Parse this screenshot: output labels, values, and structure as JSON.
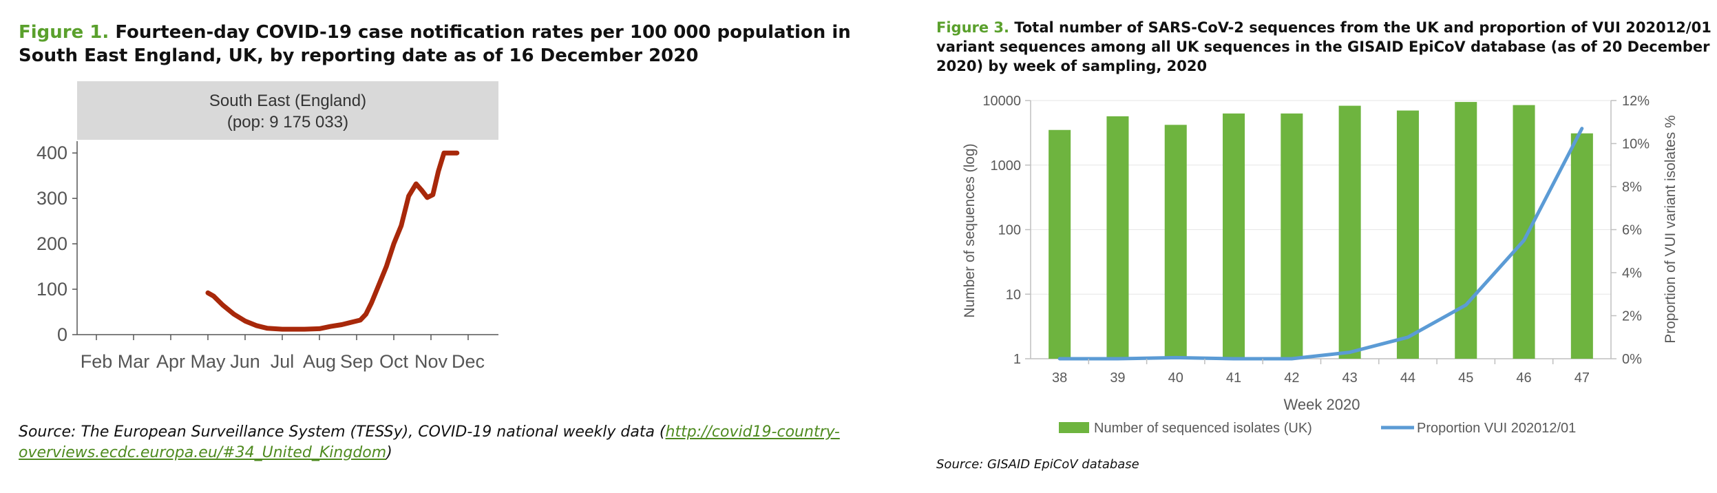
{
  "figure1": {
    "number": "Figure 1.",
    "title": "Fourteen-day COVID-19 case notification rates per 100 000 population in South East England, UK, by reporting date as of 16 December 2020",
    "source_prefix": "Source: The European Surveillance System (TESSy), COVID-19 national weekly data (",
    "source_link": "http://covid19-country-overviews.ecdc.europa.eu/#34_United_Kingdom",
    "source_suffix": ")"
  },
  "figure3": {
    "number": "Figure 3.",
    "title": "Total number of SARS-CoV-2 sequences from the UK and proportion of VUI 202012/01 variant sequences among all UK sequences in the GISAID EpiCoV database (as of 20 December 2020) by week of sampling, 2020",
    "source": "Source: GISAID EpiCoV database"
  },
  "chart_data": [
    {
      "type": "line",
      "title": "South East (England)",
      "subtitle": "(pop: 9 175 033)",
      "xlabel": "",
      "ylabel": "",
      "ylim": [
        0,
        420
      ],
      "yticks": [
        0,
        100,
        200,
        300,
        400
      ],
      "month_labels": [
        "Feb",
        "Mar",
        "Apr",
        "May",
        "Jun",
        "Jul",
        "Aug",
        "Sep",
        "Oct",
        "Nov",
        "Dec"
      ],
      "line_color": "#a8280a",
      "grid": false,
      "series": [
        {
          "x_month": [
            3.0,
            3.15,
            3.4,
            3.7,
            4.0,
            4.3,
            4.6,
            5.0,
            5.3,
            5.6,
            6.0,
            6.3,
            6.6,
            6.9,
            7.1,
            7.25,
            7.4,
            7.6,
            7.8,
            8.0,
            8.2,
            8.4,
            8.6,
            8.75,
            8.9,
            9.05,
            9.2,
            9.35,
            9.5,
            9.7
          ],
          "values": [
            92,
            85,
            65,
            45,
            30,
            20,
            14,
            12,
            12,
            12,
            13,
            18,
            22,
            28,
            32,
            45,
            70,
            110,
            150,
            200,
            240,
            305,
            332,
            318,
            302,
            308,
            360,
            400,
            400,
            400
          ]
        }
      ]
    },
    {
      "type": "bar",
      "categories": [
        "38",
        "39",
        "40",
        "41",
        "42",
        "43",
        "44",
        "45",
        "46",
        "47"
      ],
      "xlabel": "Week 2020",
      "ylabel": "Number of sequences (log)",
      "y2label": "Proportion of VUI variant isolates %",
      "ylim": [
        1,
        10000
      ],
      "yscale": "log",
      "yticks": [
        "1",
        "10",
        "100",
        "1000",
        "10000"
      ],
      "y2lim": [
        0,
        12
      ],
      "y2ticks": [
        "0%",
        "2%",
        "4%",
        "6%",
        "8%",
        "10%",
        "12%"
      ],
      "legend_position": "bottom",
      "series": [
        {
          "name": "Number of sequenced isolates (UK)",
          "kind": "bar",
          "axis": "left",
          "color": "#6eb43f",
          "values": [
            3500,
            5700,
            4200,
            6300,
            6300,
            8300,
            7000,
            9500,
            8500,
            3100
          ]
        },
        {
          "name": "Proportion VUI 202012/01",
          "kind": "line",
          "axis": "right",
          "color": "#5b9bd5",
          "values": [
            0,
            0,
            0.05,
            0,
            0,
            0.3,
            1.0,
            2.5,
            5.5,
            10.7
          ]
        }
      ]
    }
  ]
}
